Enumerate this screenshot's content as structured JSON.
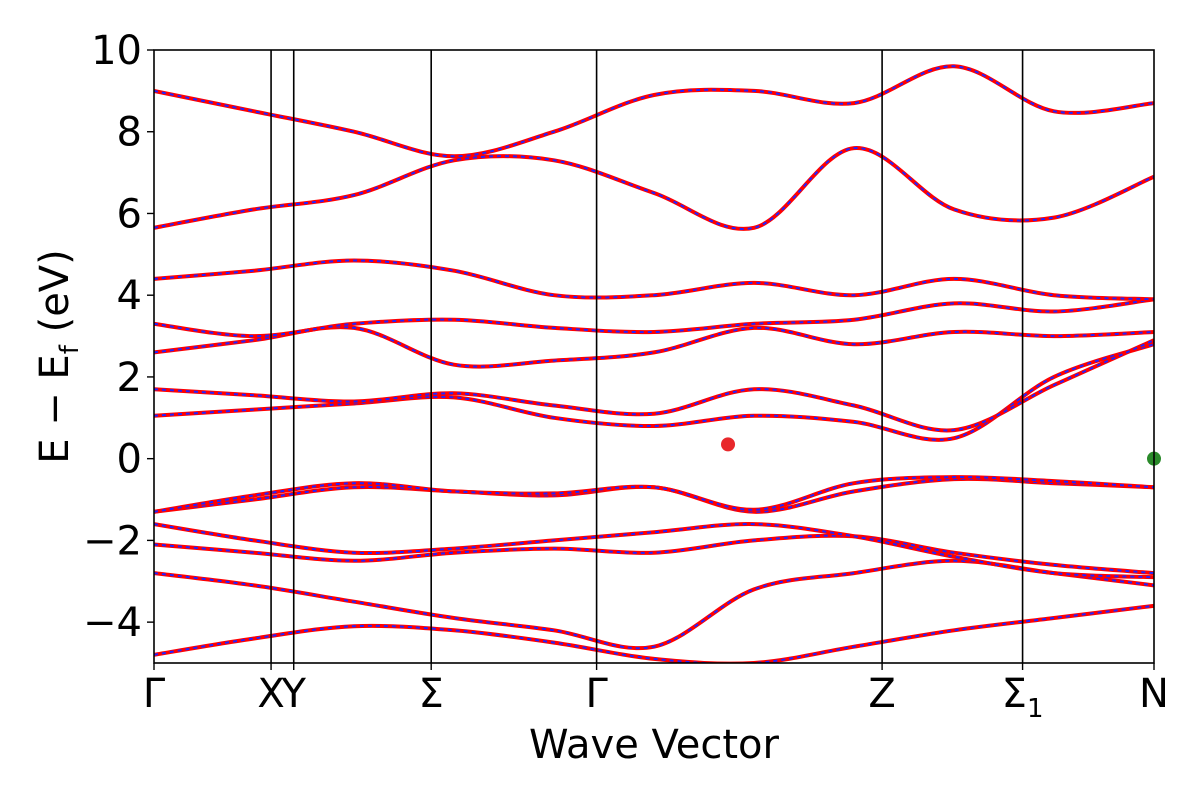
{
  "chart_data": {
    "type": "line",
    "title": "",
    "xlabel": "Wave Vector",
    "ylabel": "E − E",
    "ylabel_sub": "f",
    "ylabel_unit": " (eV)",
    "ylim": [
      -5,
      10
    ],
    "xlim": [
      0,
      13.24
    ],
    "grid": false,
    "yticks": [
      -4,
      -2,
      0,
      2,
      4,
      6,
      8,
      10
    ],
    "ytick_labels": [
      "−4",
      "−2",
      "0",
      "2",
      "4",
      "6",
      "8",
      "10"
    ],
    "kpoints": [
      {
        "pos": 0.0,
        "label": "Γ",
        "sub": ""
      },
      {
        "pos": 1.55,
        "label": "X",
        "sub": ""
      },
      {
        "pos": 1.85,
        "label": "Y",
        "sub": ""
      },
      {
        "pos": 3.67,
        "label": "Σ",
        "sub": ""
      },
      {
        "pos": 5.86,
        "label": "Γ",
        "sub": ""
      },
      {
        "pos": 9.64,
        "label": "Z",
        "sub": ""
      },
      {
        "pos": 11.5,
        "label": "Σ",
        "sub": "1"
      },
      {
        "pos": 13.24,
        "label": "N",
        "sub": ""
      }
    ],
    "series_colors": {
      "band_line": "#ff0000",
      "band_dash": "#2222ff"
    },
    "markers": [
      {
        "name": "CBM",
        "x": 7.6,
        "y": 0.35,
        "color": "#e8282b"
      },
      {
        "name": "VBM",
        "x": 13.24,
        "y": 0.0,
        "color": "#2a8a2a"
      }
    ],
    "bands": [
      {
        "values": [
          -4.8,
          -4.4,
          -4.1,
          -4.2,
          -4.5,
          -4.9,
          -5.0,
          -4.6,
          -4.2,
          -3.9,
          -3.6
        ]
      },
      {
        "values": [
          -2.8,
          -3.1,
          -3.5,
          -3.9,
          -4.2,
          -4.6,
          -3.2,
          -2.8,
          -2.5,
          -2.8,
          -3.1
        ]
      },
      {
        "values": [
          -2.1,
          -2.3,
          -2.5,
          -2.3,
          -2.2,
          -2.3,
          -2.0,
          -1.9,
          -2.3,
          -2.6,
          -2.8
        ]
      },
      {
        "values": [
          -1.6,
          -2.0,
          -2.3,
          -2.2,
          -2.0,
          -1.8,
          -1.6,
          -1.9,
          -2.4,
          -2.8,
          -2.9
        ]
      },
      {
        "values": [
          -1.3,
          -1.0,
          -0.7,
          -0.8,
          -0.9,
          -0.7,
          -1.3,
          -0.8,
          -0.5,
          -0.6,
          -0.7
        ]
      },
      {
        "values": [
          -1.3,
          -0.9,
          -0.6,
          -0.8,
          -0.85,
          -0.7,
          -1.25,
          -0.6,
          -0.45,
          -0.55,
          -0.7
        ]
      },
      {
        "values": [
          1.05,
          1.2,
          1.35,
          1.5,
          1.0,
          0.8,
          1.05,
          0.9,
          0.5,
          2.0,
          2.8
        ]
      },
      {
        "values": [
          1.7,
          1.55,
          1.4,
          1.6,
          1.3,
          1.1,
          1.7,
          1.3,
          0.7,
          1.8,
          2.9
        ]
      },
      {
        "values": [
          2.6,
          2.9,
          3.2,
          2.3,
          2.4,
          2.6,
          3.2,
          2.8,
          3.1,
          3.0,
          3.1
        ]
      },
      {
        "values": [
          3.3,
          3.0,
          3.3,
          3.4,
          3.2,
          3.1,
          3.3,
          3.4,
          3.8,
          3.6,
          3.9
        ]
      },
      {
        "values": [
          4.4,
          4.6,
          4.85,
          4.6,
          4.0,
          4.0,
          4.3,
          4.0,
          4.4,
          4.0,
          3.9
        ]
      },
      {
        "values": [
          5.65,
          6.1,
          6.45,
          7.3,
          7.3,
          6.5,
          5.65,
          7.6,
          6.1,
          5.9,
          6.9
        ]
      },
      {
        "values": [
          9.0,
          8.5,
          8.0,
          7.4,
          8.0,
          8.9,
          9.0,
          8.7,
          9.6,
          8.5,
          8.7
        ]
      }
    ]
  }
}
